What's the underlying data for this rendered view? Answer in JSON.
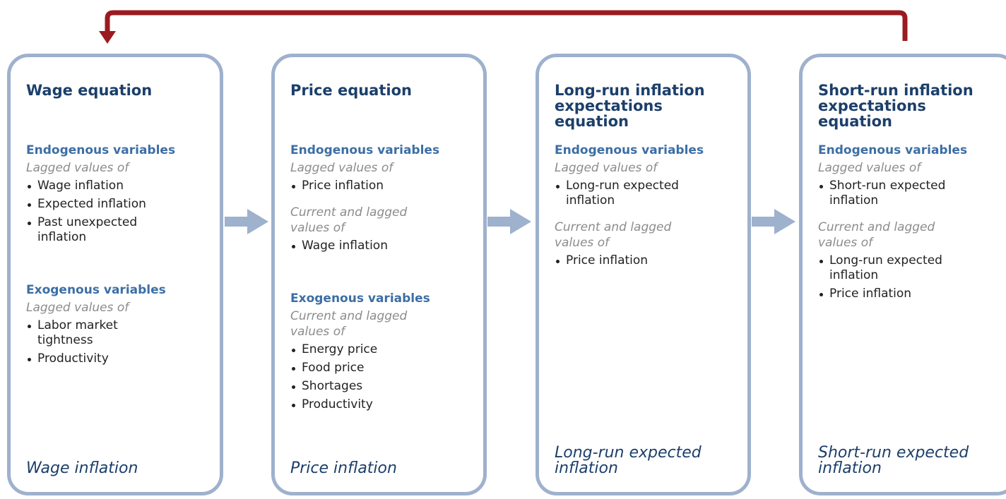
{
  "boxes": [
    {
      "title": "Wage equation",
      "sections": [
        {
          "heading": "Endogenous variables",
          "groups": [
            {
              "label": "Lagged values of",
              "items": [
                "Wage inflation",
                "Expected inflation",
                "Past unexpected inflation"
              ]
            }
          ]
        },
        {
          "heading": "Exogenous variables",
          "groups": [
            {
              "label": "Lagged values of",
              "items": [
                "Labor market tightness",
                "Productivity"
              ]
            }
          ]
        }
      ],
      "output": "Wage inflation"
    },
    {
      "title": "Price equation",
      "sections": [
        {
          "heading": "Endogenous variables",
          "groups": [
            {
              "label": "Lagged values of",
              "items": [
                "Price inflation"
              ]
            },
            {
              "label": "Current and lagged values of",
              "items": [
                "Wage inflation"
              ]
            }
          ]
        },
        {
          "heading": "Exogenous variables",
          "groups": [
            {
              "label": "Current and lagged values of",
              "items": [
                "Energy price",
                "Food price",
                "Shortages",
                "Productivity"
              ]
            }
          ]
        }
      ],
      "output": "Price inflation"
    },
    {
      "title": "Long-run inflation expectations equation",
      "sections": [
        {
          "heading": "Endogenous variables",
          "groups": [
            {
              "label": "Lagged values of",
              "items": [
                "Long-run expected inflation"
              ]
            },
            {
              "label": "Current and lagged values of",
              "items": [
                "Price inflation"
              ]
            }
          ]
        }
      ],
      "output": "Long-run expected inflation"
    },
    {
      "title": "Short-run inflation expectations equation",
      "sections": [
        {
          "heading": "Endogenous variables",
          "groups": [
            {
              "label": "Lagged values of",
              "items": [
                "Short-run expected inflation"
              ]
            },
            {
              "label": "Current and lagged values of",
              "items": [
                "Long-run expected inflation",
                "Price inflation"
              ]
            }
          ]
        }
      ],
      "output": "Short-run expected inflation"
    }
  ]
}
